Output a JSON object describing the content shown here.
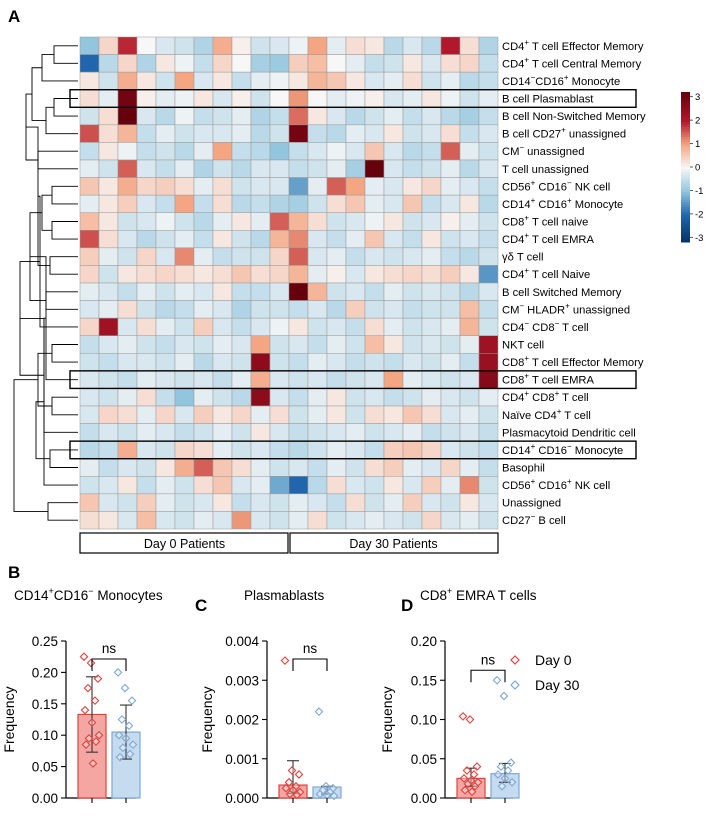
{
  "panels": {
    "a": "A",
    "b": "B",
    "c": "C",
    "d": "D"
  },
  "chart_data": [
    {
      "type": "heatmap",
      "panel": "A",
      "rows": [
        {
          "t": "CD4",
          "s": "+",
          "r": " T cell Effector Memory"
        },
        {
          "t": "CD4",
          "s": "+",
          "r": " T cell Central Memory"
        },
        {
          "t": "CD14",
          "s": "−",
          "r": "CD16",
          "s2": "+",
          "r2": " Monocyte"
        },
        {
          "t": "B cell Plasmablast"
        },
        {
          "t": "B cell Non-Switched Memory"
        },
        {
          "t": "B cell CD27",
          "s": "+",
          "r": " unassigned"
        },
        {
          "t": "CM",
          "s": "−",
          "r": " unassigned"
        },
        {
          "t": "T cell unassigned"
        },
        {
          "t": "CD56",
          "s": "+",
          "r": " CD16",
          "s2": "−",
          "r2": " NK cell"
        },
        {
          "t": "CD14",
          "s": "+",
          "r": " CD16",
          "s2": "+",
          "r2": " Monocyte"
        },
        {
          "t": "CD8",
          "s": "+",
          "r": " T cell naive"
        },
        {
          "t": "CD4",
          "s": "+",
          "r": " T cell EMRA"
        },
        {
          "t": "γδ T cell"
        },
        {
          "t": "CD4",
          "s": "+",
          "r": " T cell Naive"
        },
        {
          "t": "B cell Switched Memory"
        },
        {
          "t": "CM",
          "s": "−",
          "r": " HLADR",
          "s2": "+",
          "r2": " unassigned"
        },
        {
          "t": "CD4",
          "s": "−",
          "r": " CD8",
          "s2": "−",
          "r2": " T cell"
        },
        {
          "t": "NKT cell"
        },
        {
          "t": "CD8",
          "s": "+",
          "r": " T cell Effector Memory"
        },
        {
          "t": "CD8",
          "s": "+",
          "r": " T cell EMRA"
        },
        {
          "t": "CD4",
          "s": "+",
          "r": " CD8",
          "s2": "+",
          "r2": " T cell"
        },
        {
          "t": "Naïve CD4",
          "s": "+",
          "r": " T cell"
        },
        {
          "t": "Plasmacytoid Dendritic cell"
        },
        {
          "t": "CD14",
          "s": "+",
          "r": " CD16",
          "s2": "−",
          "r2": " Monocyte"
        },
        {
          "t": "Basophil"
        },
        {
          "t": "CD56",
          "s": "+",
          "r": " CD16",
          "s2": "+",
          "r2": " NK cell"
        },
        {
          "t": "Unassigned"
        },
        {
          "t": "CD27",
          "s": "−",
          "r": " B cell"
        }
      ],
      "highlighted_rows": [
        3,
        19,
        23
      ],
      "groups": [
        "Day 0 Patients",
        "Day 30 Patients"
      ],
      "colorbar": {
        "min": -3,
        "max": 3,
        "ticks": [
          "3",
          "2",
          "1",
          "0",
          "-1",
          "-2",
          "-3"
        ]
      },
      "z": [
        [
          -1.0,
          0.4,
          1.9,
          0.0,
          -0.3,
          -0.4,
          -0.7,
          0.9,
          0.1,
          -0.4,
          -0.3,
          -0.1,
          1.0,
          -0.2,
          0.3,
          0.2,
          -0.6,
          -0.3,
          -0.6,
          2.0,
          0.3,
          -0.7
        ],
        [
          -2.0,
          -0.6,
          0.4,
          -0.7,
          0.2,
          -0.1,
          -0.5,
          0.4,
          0.0,
          -0.8,
          -0.9,
          0.5,
          0.7,
          0.0,
          -0.2,
          -0.5,
          -0.4,
          0.2,
          -0.3,
          0.3,
          0.4,
          -0.5
        ],
        [
          0.2,
          -0.4,
          0.9,
          0.2,
          -0.4,
          1.0,
          -0.3,
          0.2,
          -0.5,
          -0.2,
          -0.1,
          0.2,
          0.8,
          0.6,
          0.2,
          -0.3,
          -0.2,
          0.3,
          -0.4,
          -0.2,
          -0.6,
          -0.5
        ],
        [
          0.3,
          -0.2,
          3.0,
          0.1,
          -0.2,
          -0.1,
          0.2,
          -0.3,
          0.1,
          -0.4,
          0.0,
          1.1,
          0.0,
          -0.2,
          -0.1,
          0.1,
          -0.3,
          -0.2,
          0.2,
          -0.1,
          -0.4,
          -0.2
        ],
        [
          -0.4,
          0.3,
          3.2,
          -0.3,
          -0.6,
          -0.1,
          -0.5,
          -0.4,
          -0.2,
          -0.7,
          -0.5,
          1.4,
          0.2,
          -0.3,
          -0.6,
          -0.4,
          -0.2,
          -0.5,
          -0.3,
          -0.6,
          -0.8,
          -0.5
        ],
        [
          1.6,
          0.3,
          0.8,
          -0.5,
          -0.2,
          -0.4,
          -0.3,
          -0.3,
          -0.2,
          -0.6,
          -0.4,
          3.0,
          -0.5,
          -0.6,
          -0.2,
          -0.3,
          0.2,
          -0.4,
          -0.3,
          0.3,
          -0.5,
          -0.3
        ],
        [
          -0.5,
          0.2,
          -0.1,
          -0.5,
          -0.4,
          -0.6,
          -0.2,
          1.0,
          -0.5,
          -0.6,
          -1.0,
          -0.5,
          -0.3,
          -0.1,
          -0.3,
          0.6,
          -0.3,
          -0.6,
          -0.5,
          1.5,
          -0.2,
          -0.4
        ],
        [
          -0.2,
          -0.4,
          1.5,
          -0.3,
          -0.5,
          -0.2,
          -0.7,
          -0.4,
          -0.6,
          -0.3,
          -0.3,
          -0.5,
          -0.4,
          -0.2,
          -0.8,
          3.2,
          -0.3,
          -0.5,
          -0.4,
          -0.2,
          -0.6,
          -0.3
        ],
        [
          0.6,
          0.2,
          0.9,
          0.4,
          0.5,
          0.3,
          -0.2,
          0.3,
          -0.4,
          -0.3,
          -0.3,
          -1.4,
          -0.2,
          1.5,
          1.0,
          -0.2,
          -0.3,
          0.2,
          0.4,
          -0.2,
          -0.3,
          -0.5
        ],
        [
          -0.2,
          0.2,
          0.5,
          -0.3,
          -0.5,
          1.0,
          -0.5,
          0.3,
          -0.6,
          -0.5,
          -0.7,
          -0.8,
          -0.4,
          0.3,
          0.6,
          -0.2,
          -0.3,
          0.6,
          -0.5,
          -0.3,
          0.2,
          -0.6
        ],
        [
          0.7,
          0.2,
          -0.4,
          -0.3,
          -0.1,
          -0.4,
          -0.6,
          -0.2,
          0.2,
          -0.2,
          1.5,
          0.8,
          0.3,
          -0.4,
          -0.3,
          -0.1,
          0.2,
          -0.4,
          -0.3,
          0.1,
          -0.2,
          -0.4
        ],
        [
          1.6,
          0.3,
          -0.3,
          -0.6,
          -0.4,
          -0.2,
          -0.5,
          0.2,
          -0.4,
          -0.6,
          0.8,
          1.2,
          -0.3,
          -0.5,
          -0.2,
          0.6,
          -0.3,
          -0.5,
          0.2,
          -0.4,
          -0.3,
          -0.5
        ],
        [
          0.5,
          -0.2,
          -0.4,
          0.4,
          -0.3,
          1.2,
          -0.2,
          -0.5,
          -0.4,
          -0.4,
          0.4,
          1.5,
          -0.3,
          -0.2,
          -0.5,
          -0.3,
          -0.4,
          -0.3,
          -0.2,
          -0.5,
          -0.6,
          -0.4
        ],
        [
          0.4,
          -0.4,
          0.2,
          0.3,
          0.4,
          0.3,
          0.2,
          0.3,
          0.6,
          0.3,
          0.4,
          0.8,
          -0.2,
          0.1,
          -0.3,
          0.2,
          0.3,
          0.4,
          0.3,
          0.5,
          0.2,
          -1.5
        ],
        [
          -0.2,
          -0.3,
          -0.5,
          -0.2,
          -0.4,
          -0.2,
          -0.3,
          0.2,
          -0.5,
          -0.5,
          -0.3,
          3.2,
          0.8,
          -0.4,
          -0.3,
          -0.5,
          -0.2,
          -0.4,
          -0.3,
          -0.4,
          -0.6,
          -0.3
        ],
        [
          -0.3,
          -0.2,
          0.3,
          -0.4,
          -0.6,
          -0.5,
          -0.2,
          -0.3,
          -0.7,
          -0.4,
          -0.4,
          -0.5,
          -0.3,
          -0.6,
          0.5,
          -0.4,
          -0.3,
          -0.5,
          -0.4,
          -0.4,
          0.7,
          -0.5
        ],
        [
          0.4,
          2.3,
          -0.3,
          0.3,
          -0.2,
          -0.4,
          0.5,
          -0.3,
          -0.5,
          -0.3,
          -0.1,
          0.2,
          -0.4,
          -0.3,
          -0.5,
          0.3,
          -0.2,
          -0.4,
          -0.3,
          -0.2,
          0.8,
          -0.4
        ],
        [
          -0.5,
          -0.3,
          -0.2,
          -0.4,
          -0.5,
          -0.3,
          -0.4,
          -0.2,
          -0.3,
          1.0,
          -0.4,
          -0.3,
          -0.5,
          -0.2,
          -0.4,
          0.7,
          0.2,
          -0.4,
          -0.3,
          -0.4,
          -0.2,
          2.3
        ],
        [
          -0.4,
          -0.5,
          -0.3,
          -0.3,
          -0.4,
          -0.2,
          -0.6,
          -0.3,
          -0.4,
          2.6,
          -0.4,
          -0.5,
          -0.2,
          -0.3,
          -0.5,
          -0.4,
          -0.5,
          -0.3,
          -0.4,
          -0.2,
          -0.5,
          2.4
        ],
        [
          -0.3,
          -0.4,
          -0.5,
          -0.2,
          -0.3,
          -0.4,
          -0.3,
          -0.5,
          -0.2,
          0.9,
          -0.3,
          -0.4,
          -0.3,
          -0.5,
          -0.4,
          -0.3,
          1.0,
          -0.2,
          -0.3,
          -0.4,
          -0.3,
          2.7
        ],
        [
          -0.3,
          -0.4,
          -0.2,
          0.3,
          -0.5,
          -1.0,
          -0.2,
          -0.4,
          -0.6,
          2.6,
          -0.3,
          -0.5,
          -0.2,
          0.2,
          -0.4,
          -0.3,
          -0.5,
          -0.4,
          -0.2,
          -0.3,
          -0.4,
          -0.2
        ],
        [
          -0.3,
          0.4,
          0.3,
          -0.2,
          0.4,
          -0.3,
          0.5,
          0.2,
          0.4,
          -0.2,
          0.3,
          -0.4,
          -0.2,
          0.2,
          -0.4,
          0.3,
          0.2,
          0.6,
          0.3,
          -0.3,
          -0.2,
          -0.4
        ],
        [
          -0.5,
          -0.3,
          -0.4,
          -0.2,
          -0.3,
          -0.5,
          -0.4,
          -0.2,
          -0.4,
          0.2,
          -0.3,
          -0.5,
          -0.4,
          -0.3,
          -0.2,
          -0.4,
          -0.3,
          -0.2,
          -0.5,
          -0.4,
          -0.3,
          -0.5
        ],
        [
          -0.6,
          -0.5,
          0.9,
          -0.3,
          -0.4,
          0.4,
          0.3,
          -0.2,
          -0.4,
          -0.3,
          -0.5,
          -0.6,
          -0.4,
          -0.2,
          -0.3,
          -0.5,
          0.5,
          0.6,
          0.4,
          -0.3,
          -0.4,
          -0.5
        ],
        [
          -0.2,
          -0.5,
          -0.3,
          -0.4,
          0.2,
          0.9,
          1.5,
          0.6,
          0.3,
          -0.2,
          -0.4,
          -0.3,
          -0.5,
          -0.2,
          -0.4,
          0.3,
          0.5,
          -0.2,
          -0.3,
          0.4,
          -0.2,
          -0.5
        ],
        [
          -0.4,
          -0.3,
          0.2,
          -0.5,
          -0.2,
          -0.4,
          0.3,
          0.6,
          -0.3,
          -0.2,
          -1.3,
          -2.0,
          -0.6,
          0.3,
          -0.3,
          -0.4,
          0.2,
          -0.3,
          0.5,
          -0.2,
          1.2,
          -0.4
        ],
        [
          0.6,
          -0.3,
          -0.4,
          0.5,
          -0.2,
          -0.4,
          -0.3,
          0.2,
          -0.5,
          -0.3,
          -0.4,
          -0.2,
          -0.3,
          -0.5,
          0.3,
          -0.4,
          -0.2,
          0.5,
          -0.3,
          -0.4,
          0.2,
          -0.3
        ],
        [
          0.3,
          0.2,
          -0.3,
          0.7,
          -0.3,
          -0.4,
          -0.2,
          -0.3,
          1.1,
          -0.3,
          -0.4,
          -0.2,
          0.3,
          -0.4,
          -0.3,
          -0.2,
          -0.3,
          -0.4,
          0.4,
          -0.3,
          -0.2,
          -0.4
        ]
      ]
    },
    {
      "type": "bar",
      "panel": "B",
      "title_main": "CD14",
      "title_sup1": "+",
      "title_mid": "CD16",
      "title_sup2": "−",
      "title_rest": " Monocytes",
      "ylabel": "Frequency",
      "ylim": [
        0,
        0.25
      ],
      "yticks": [
        "0.00",
        "0.05",
        "0.10",
        "0.15",
        "0.20",
        "0.25"
      ],
      "significance": "ns",
      "bars": [
        {
          "name": "Day 0",
          "mean": 0.133,
          "sd_low": 0.073,
          "sd_high": 0.193,
          "points": [
            0.225,
            0.215,
            0.19,
            0.175,
            0.155,
            0.14,
            0.12,
            0.1,
            0.095,
            0.09,
            0.085,
            0.055
          ]
        },
        {
          "name": "Day 30",
          "mean": 0.105,
          "sd_low": 0.062,
          "sd_high": 0.148,
          "points": [
            0.2,
            0.175,
            0.155,
            0.125,
            0.115,
            0.1,
            0.095,
            0.085,
            0.08,
            0.07,
            0.065
          ]
        }
      ]
    },
    {
      "type": "bar",
      "panel": "C",
      "title": "Plasmablasts",
      "ylabel": "Frequency",
      "ylim": [
        0,
        0.004
      ],
      "yticks": [
        "0.000",
        "0.001",
        "0.002",
        "0.003",
        "0.004"
      ],
      "significance": "ns",
      "bars": [
        {
          "name": "Day 0",
          "mean": 0.00033,
          "sd_low": 0.00012,
          "sd_high": 0.00095,
          "points": [
            0.0035,
            0.0007,
            0.0006,
            0.0004,
            0.0003,
            0.00025,
            0.0002,
            0.00015,
            0.0001,
            8e-05
          ]
        },
        {
          "name": "Day 30",
          "mean": 0.00028,
          "sd_low": 0.0001,
          "sd_high": 0.0003,
          "points": [
            0.0022,
            0.0003,
            0.00025,
            0.0002,
            0.00015,
            0.0001,
            8e-05,
            5e-05
          ]
        }
      ]
    },
    {
      "type": "bar",
      "panel": "D",
      "title_main": "CD8",
      "title_sup1": "+",
      "title_rest": " EMRA T cells",
      "ylabel": "Frequency",
      "ylim": [
        0,
        0.2
      ],
      "yticks": [
        "0.00",
        "0.05",
        "0.10",
        "0.15",
        "0.20"
      ],
      "significance": "ns",
      "legend": [
        {
          "name": "Day 0",
          "color": "#e0433f"
        },
        {
          "name": "Day 30",
          "color": "#7fa8d6"
        }
      ],
      "bars": [
        {
          "name": "Day 0",
          "mean": 0.025,
          "sd_low": 0.015,
          "sd_high": 0.038,
          "points": [
            0.104,
            0.1,
            0.04,
            0.035,
            0.03,
            0.025,
            0.022,
            0.02,
            0.018,
            0.015,
            0.01,
            0.008
          ]
        },
        {
          "name": "Day 30",
          "mean": 0.031,
          "sd_low": 0.02,
          "sd_high": 0.044,
          "points": [
            0.15,
            0.13,
            0.045,
            0.04,
            0.035,
            0.03,
            0.025,
            0.02,
            0.015
          ]
        }
      ]
    }
  ],
  "colors": {
    "red": "#e0433f",
    "blue": "#7fa8d6",
    "bar_red": "#f4a7a2",
    "bar_blue": "#c5dbef"
  }
}
